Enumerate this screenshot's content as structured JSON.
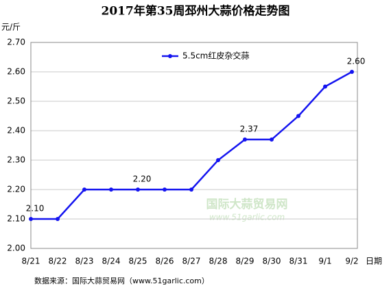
{
  "chart_data": {
    "type": "line",
    "title": "2017年第35周邳州大蒜价格走势图",
    "y_label": "元/斤",
    "x_label": "日期",
    "categories": [
      "8/21",
      "8/22",
      "8/23",
      "8/24",
      "8/25",
      "8/26",
      "8/27",
      "8/28",
      "8/29",
      "8/30",
      "8/31",
      "9/1",
      "9/2"
    ],
    "series": [
      {
        "name": "5.5cm红皮杂交蒜",
        "color": "#1414f0",
        "values": [
          2.1,
          2.1,
          2.2,
          2.2,
          2.2,
          2.2,
          2.2,
          2.3,
          2.37,
          2.37,
          2.45,
          2.55,
          2.6
        ],
        "value_labels": [
          "2.10",
          null,
          null,
          null,
          "2.20",
          null,
          null,
          null,
          "2.37",
          null,
          null,
          null,
          "2.60"
        ]
      }
    ],
    "ylim": [
      2.0,
      2.7
    ],
    "yticks": [
      {
        "value": 2.0,
        "label": "2.00"
      },
      {
        "value": 2.1,
        "label": "2.10"
      },
      {
        "value": 2.2,
        "label": "2.20"
      },
      {
        "value": 2.3,
        "label": "2.30"
      },
      {
        "value": 2.4,
        "label": "2.40"
      },
      {
        "value": 2.5,
        "label": "2.50"
      },
      {
        "value": 2.6,
        "label": "2.60"
      },
      {
        "value": 2.7,
        "label": "2.70"
      }
    ],
    "grid": true,
    "legend": "top",
    "watermark": [
      "国际大蒜贸易网",
      "www.51garlic.com"
    ],
    "source": "数据来源：国际大蒜贸易网（www.51garlic.com）"
  }
}
